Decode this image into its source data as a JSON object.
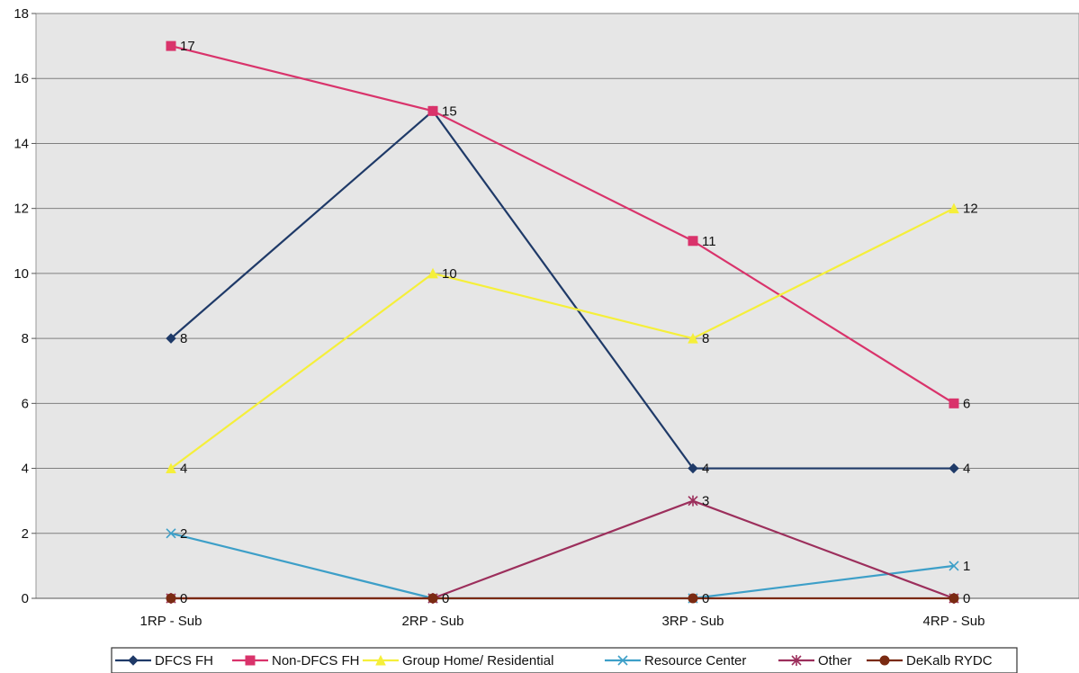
{
  "chart_data": {
    "type": "line",
    "categories": [
      "1RP - Sub",
      "2RP - Sub",
      "3RP - Sub",
      "4RP - Sub"
    ],
    "ylim": [
      0,
      18
    ],
    "yticks": [
      0,
      2,
      4,
      6,
      8,
      10,
      12,
      14,
      16,
      18
    ],
    "grid": true,
    "legend_position": "bottom",
    "series": [
      {
        "name": "DFCS FH",
        "values": [
          8,
          15,
          4,
          4
        ],
        "color": "#1f3a68",
        "marker": "diamond",
        "labels": [
          "8",
          "",
          "4",
          "4"
        ]
      },
      {
        "name": "Non-DFCS FH",
        "values": [
          17,
          15,
          11,
          6
        ],
        "color": "#d9336b",
        "marker": "square",
        "labels": [
          "17",
          "15",
          "11",
          "6"
        ]
      },
      {
        "name": "Group Home/ Residential",
        "values": [
          4,
          10,
          8,
          12
        ],
        "color": "#f5ef3a",
        "marker": "triangle",
        "labels": [
          "4",
          "10",
          "8",
          "12"
        ]
      },
      {
        "name": "Resource Center",
        "values": [
          2,
          0,
          0,
          1
        ],
        "color": "#3d9fc8",
        "marker": "x",
        "labels": [
          "2",
          "",
          "",
          "1"
        ]
      },
      {
        "name": "Other",
        "values": [
          0,
          0,
          3,
          0
        ],
        "color": "#9c2f5c",
        "marker": "star",
        "labels": [
          "",
          "",
          "3",
          ""
        ]
      },
      {
        "name": "DeKalb RYDC",
        "values": [
          0,
          0,
          0,
          0
        ],
        "color": "#7a2a12",
        "marker": "circle",
        "labels": [
          "0",
          "0",
          "0",
          "0"
        ]
      }
    ]
  }
}
